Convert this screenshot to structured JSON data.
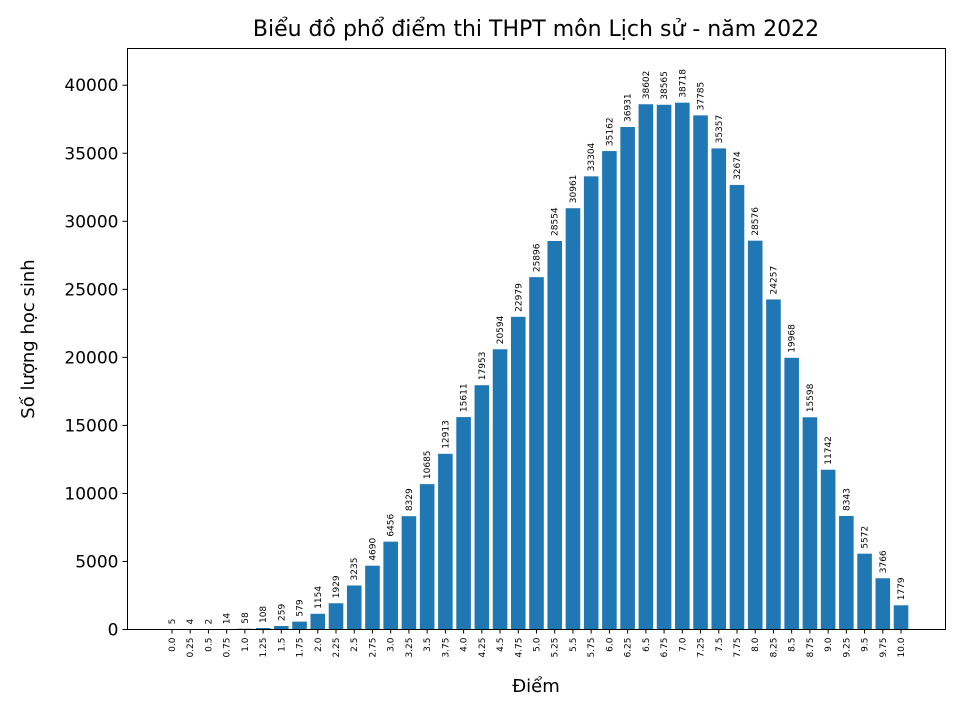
{
  "chart_data": {
    "type": "bar",
    "title": "Biểu đồ phổ điểm thi THPT môn Lịch sử - năm 2022",
    "xlabel": "Điểm",
    "ylabel": "Số lượng học sinh",
    "categories": [
      "0.0",
      "0.25",
      "0.5",
      "0.75",
      "1.0",
      "1.25",
      "1.5",
      "1.75",
      "2.0",
      "2.25",
      "2.5",
      "2.75",
      "3.0",
      "3.25",
      "3.5",
      "3.75",
      "4.0",
      "4.25",
      "4.5",
      "4.75",
      "5.0",
      "5.25",
      "5.5",
      "5.75",
      "6.0",
      "6.25",
      "6.5",
      "6.75",
      "7.0",
      "7.25",
      "7.5",
      "7.75",
      "8.0",
      "8.25",
      "8.5",
      "8.75",
      "9.0",
      "9.25",
      "9.5",
      "9.75",
      "10.0"
    ],
    "values": [
      5,
      4,
      2,
      14,
      58,
      108,
      259,
      579,
      1154,
      1929,
      3235,
      4690,
      6456,
      8329,
      10685,
      12913,
      15611,
      17953,
      20594,
      22979,
      25896,
      28554,
      30961,
      33304,
      35162,
      36931,
      38602,
      38565,
      38718,
      37785,
      35357,
      32674,
      28576,
      24257,
      19968,
      15598,
      11742,
      8343,
      5572,
      3766,
      1779
    ],
    "yticks": [
      0,
      5000,
      10000,
      15000,
      20000,
      25000,
      30000,
      35000,
      40000
    ],
    "ylim": [
      0,
      42700
    ],
    "grid": false,
    "bar_color": "#1f77b4",
    "data_labels": true
  }
}
